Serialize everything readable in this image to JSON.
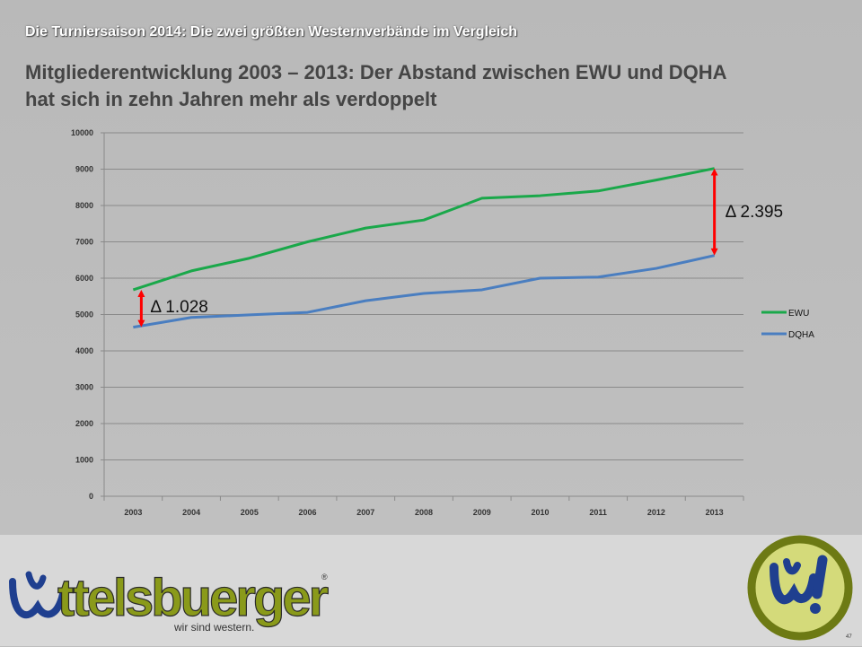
{
  "header": {
    "title": "Die Turniersaison 2014: Die zwei größten Westernverbände im Vergleich"
  },
  "main": {
    "title_line1": "Mitgliederentwicklung 2003 – 2013: Der Abstand zwischen EWU und DQHA",
    "title_line2": "hat sich in zehn Jahren mehr als verdoppelt"
  },
  "chart_data": {
    "type": "line",
    "title": "",
    "xlabel": "",
    "ylabel": "",
    "categories": [
      "2003",
      "2004",
      "2005",
      "2006",
      "2007",
      "2008",
      "2009",
      "2010",
      "2011",
      "2012",
      "2013"
    ],
    "ylim": [
      0,
      10000
    ],
    "yticks": [
      "0",
      "1000",
      "2000",
      "3000",
      "4000",
      "5000",
      "6000",
      "7000",
      "8000",
      "9000",
      "10000"
    ],
    "grid": true,
    "legend_position": "right",
    "series": [
      {
        "name": "EWU",
        "color": "#1aa84a",
        "values": [
          5680,
          6200,
          6550,
          7000,
          7380,
          7600,
          8200,
          8270,
          8400,
          8700,
          9020
        ]
      },
      {
        "name": "DQHA",
        "color": "#4a7ec0",
        "values": [
          4652,
          4920,
          4990,
          5060,
          5380,
          5580,
          5680,
          6000,
          6030,
          6270,
          6625
        ]
      }
    ],
    "annotations": [
      {
        "text": "Δ 1.028",
        "category": "2003",
        "from": 4652,
        "to": 5680,
        "color": "#ff0000"
      },
      {
        "text": "Δ 2.395",
        "category": "2013",
        "from": 6625,
        "to": 9020,
        "color": "#ff0000"
      }
    ]
  },
  "footer": {
    "logo_text": "ttelsbuerger",
    "logo_initial": "W",
    "registered_mark": "®",
    "slogan": "wir sind western.",
    "badge_text": "W!",
    "page_number": "47"
  },
  "colors": {
    "logo_blue": "#1f3f8f",
    "logo_olive": "#8a9a1a"
  }
}
